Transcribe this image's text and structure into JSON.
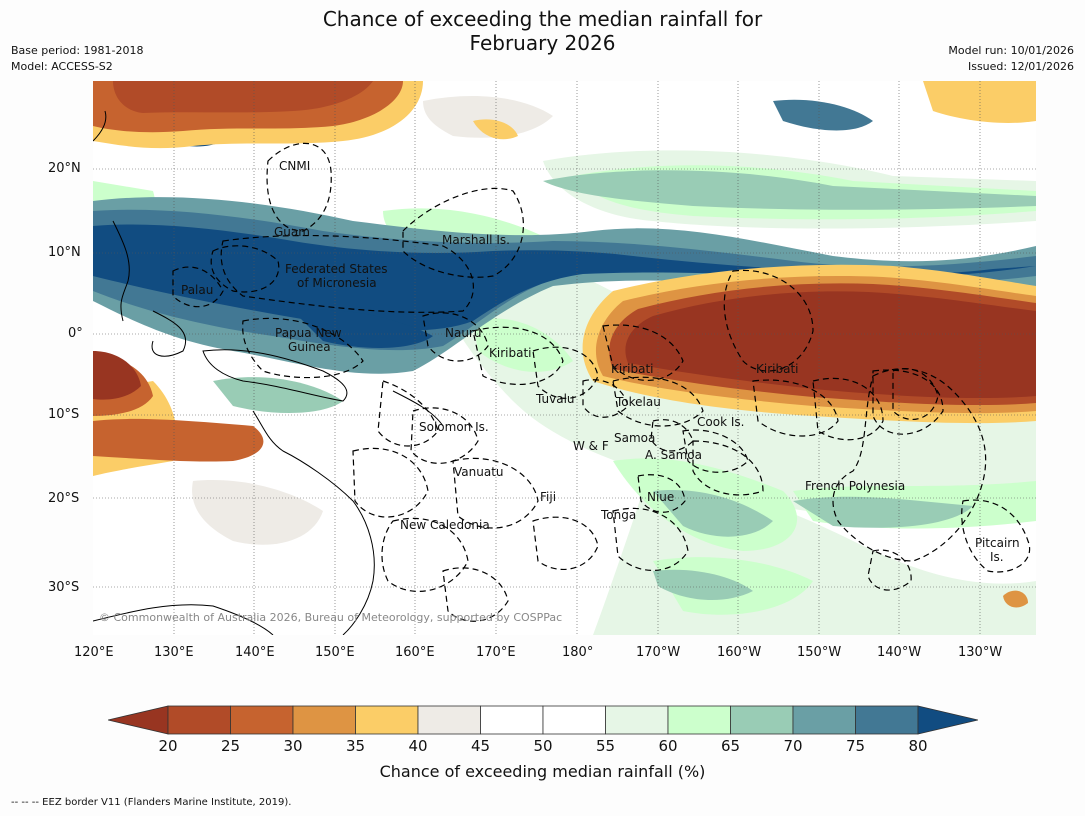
{
  "title_line1": "Chance of exceeding the median rainfall for",
  "title_line2": "February 2026",
  "meta": {
    "base_period": "Base period: 1981-2018",
    "model": "Model: ACCESS-S2",
    "model_run": "Model run: 10/01/2026",
    "issued": "Issued: 12/01/2026"
  },
  "map": {
    "lat_labels": [
      "20°N",
      "10°N",
      "0°",
      "10°S",
      "20°S",
      "30°S"
    ],
    "lon_labels": [
      "120°E",
      "130°E",
      "140°E",
      "150°E",
      "160°E",
      "170°E",
      "180°",
      "170°W",
      "160°W",
      "150°W",
      "140°W",
      "130°W"
    ],
    "places": {
      "cnmi": "CNMI",
      "guam": "Guam",
      "marshall": "Marshall Is.",
      "fsm_1": "Federated States",
      "fsm_2": "of Micronesia",
      "palau": "Palau",
      "png_1": "Papua New",
      "png_2": "Guinea",
      "nauru": "Nauru",
      "kiribati_w": "Kiribati",
      "kiribati_c": "Kiribati",
      "kiribati_e": "Kiribati",
      "tuvalu": "Tuvalu",
      "tokelau": "Tokelau",
      "cook": "Cook Is.",
      "solomon": "Solomon Is.",
      "wf": "W & F",
      "samoa": "Samoa",
      "asamoa": "A. Samoa",
      "vanuatu": "Vanuatu",
      "fiji": "Fiji",
      "niue": "Niue",
      "tonga": "Tonga",
      "french_polynesia": "French Polynesia",
      "newcal": "New Caledonia",
      "pitcairn_1": "Pitcairn",
      "pitcairn_2": "Is."
    },
    "copyright": "© Commonwealth of Australia 2026, Bureau of Meteorology, supported by COSPPac"
  },
  "colorbar": {
    "ticks": [
      "20",
      "25",
      "30",
      "35",
      "40",
      "45",
      "50",
      "55",
      "60",
      "65",
      "70",
      "75",
      "80"
    ],
    "label": "Chance of exceeding median rainfall (%)",
    "colors": {
      "lt20": "#983521",
      "c20_25": "#b14b28",
      "c25_30": "#c6632f",
      "c30_35": "#de9443",
      "c35_40": "#fbcd67",
      "c40_45": "#eeebe6",
      "c45_50": "#ffffff",
      "c50_55": "#ffffff",
      "c55_60": "#e6f6e6",
      "c60_65": "#ccffcc",
      "c65_70": "#99ccb5",
      "c70_75": "#6a9fa5",
      "c75_80": "#427894",
      "gt80": "#114c81"
    }
  },
  "footer": "--  --  -- EEZ border V11 (Flanders Marine Institute, 2019)."
}
